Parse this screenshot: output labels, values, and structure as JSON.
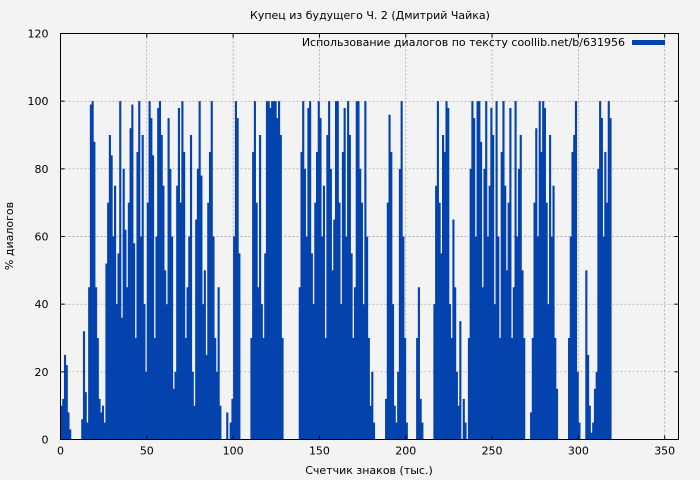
{
  "chart_data": {
    "type": "bar",
    "title": "Купец из будущего Ч. 2 (Дмитрий Чайка)",
    "xlabel": "Счетчик знаков (тыс.)",
    "ylabel": "% диалогов",
    "xlim": [
      0,
      358
    ],
    "ylim": [
      0,
      120
    ],
    "xticks": [
      0,
      50,
      100,
      150,
      200,
      250,
      300,
      350
    ],
    "yticks": [
      0,
      20,
      40,
      60,
      80,
      100,
      120
    ],
    "grid": true,
    "legend_position": "top-right",
    "series": [
      {
        "name": "Использование диалогов по тексту coollib.net/b/631956",
        "color": "#0443ad",
        "x_step": 1,
        "values": [
          10,
          12,
          25,
          22,
          8,
          3,
          0,
          0,
          0,
          0,
          0,
          0,
          6,
          32,
          14,
          5,
          45,
          99,
          100,
          88,
          45,
          30,
          12,
          8,
          10,
          5,
          52,
          70,
          90,
          84,
          60,
          75,
          40,
          55,
          100,
          36,
          80,
          62,
          45,
          70,
          92,
          99,
          58,
          30,
          85,
          100,
          60,
          90,
          40,
          20,
          70,
          100,
          95,
          84,
          30,
          60,
          98,
          100,
          90,
          75,
          50,
          40,
          95,
          80,
          60,
          15,
          20,
          75,
          98,
          70,
          100,
          85,
          30,
          45,
          60,
          90,
          20,
          10,
          65,
          80,
          100,
          78,
          40,
          50,
          25,
          70,
          85,
          100,
          60,
          30,
          20,
          45,
          10,
          0,
          0,
          0,
          8,
          0,
          5,
          12,
          60,
          100,
          95,
          55,
          0,
          0,
          0,
          0,
          0,
          0,
          30,
          85,
          100,
          70,
          45,
          90,
          40,
          30,
          55,
          100,
          100,
          98,
          100,
          100,
          100,
          95,
          100,
          90,
          30,
          0,
          0,
          0,
          0,
          0,
          0,
          0,
          0,
          0,
          45,
          85,
          100,
          80,
          60,
          98,
          100,
          55,
          40,
          70,
          85,
          100,
          95,
          60,
          75,
          30,
          90,
          100,
          80,
          50,
          65,
          100,
          100,
          70,
          40,
          85,
          98,
          60,
          100,
          90,
          55,
          30,
          45,
          100,
          100,
          80,
          70,
          40,
          100,
          60,
          30,
          10,
          20,
          5,
          0,
          0,
          0,
          0,
          0,
          0,
          12,
          70,
          96,
          85,
          40,
          10,
          5,
          20,
          80,
          100,
          60,
          30,
          5,
          0,
          0,
          0,
          0,
          0,
          30,
          45,
          12,
          5,
          0,
          0,
          0,
          0,
          0,
          0,
          40,
          75,
          100,
          70,
          55,
          90,
          85,
          100,
          98,
          40,
          30,
          65,
          45,
          20,
          10,
          35,
          0,
          12,
          5,
          0,
          30,
          80,
          100,
          95,
          60,
          100,
          100,
          88,
          45,
          80,
          100,
          60,
          75,
          98,
          90,
          40,
          100,
          60,
          30,
          85,
          100,
          75,
          50,
          70,
          98,
          30,
          45,
          100,
          60,
          80,
          90,
          50,
          30,
          0,
          0,
          0,
          8,
          30,
          70,
          92,
          60,
          100,
          85,
          100,
          98,
          70,
          40,
          90,
          60,
          75,
          30,
          15,
          0,
          0,
          0,
          0,
          0,
          0,
          30,
          60,
          85,
          90,
          100,
          20,
          5,
          0,
          0,
          0,
          50,
          25,
          10,
          2,
          5,
          15,
          20,
          80,
          100,
          95,
          60,
          85,
          70,
          100,
          95
        ]
      }
    ]
  }
}
